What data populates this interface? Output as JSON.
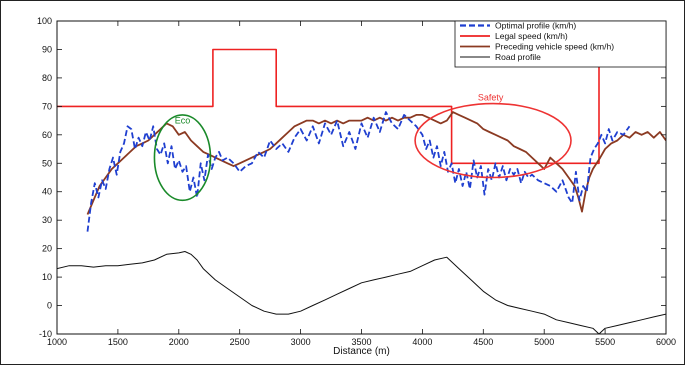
{
  "chart_data": {
    "type": "line",
    "xlabel": "Distance (m)",
    "ylabel": "",
    "title": "",
    "xlim": [
      1000,
      6000
    ],
    "ylim": [
      -10,
      100
    ],
    "xticks": [
      1000,
      1500,
      2000,
      2500,
      3000,
      3500,
      4000,
      4500,
      5000,
      5500,
      6000
    ],
    "yticks": [
      -10,
      0,
      10,
      20,
      30,
      40,
      50,
      60,
      70,
      80,
      90,
      100
    ],
    "grid": false,
    "legend_position": "top-right",
    "series": [
      {
        "name": "Optimal profile (km/h)",
        "color": "#1f3fd0",
        "style": "dashed",
        "x": [
          1250,
          1280,
          1310,
          1340,
          1370,
          1400,
          1430,
          1460,
          1490,
          1520,
          1550,
          1580,
          1610,
          1640,
          1670,
          1700,
          1730,
          1760,
          1790,
          1820,
          1850,
          1880,
          1910,
          1940,
          1970,
          2000,
          2030,
          2060,
          2090,
          2120,
          2150,
          2180,
          2210,
          2240,
          2270,
          2300,
          2330,
          2360,
          2400,
          2450,
          2500,
          2550,
          2600,
          2650,
          2700,
          2750,
          2800,
          2850,
          2900,
          2950,
          3000,
          3050,
          3100,
          3150,
          3200,
          3250,
          3300,
          3350,
          3400,
          3450,
          3500,
          3550,
          3600,
          3650,
          3700,
          3750,
          3800,
          3850,
          3900,
          3950,
          4000,
          4030,
          4060,
          4090,
          4120,
          4150,
          4180,
          4210,
          4240,
          4270,
          4300,
          4330,
          4360,
          4390,
          4420,
          4450,
          4480,
          4510,
          4540,
          4570,
          4600,
          4630,
          4660,
          4690,
          4720,
          4750,
          4780,
          4810,
          4840,
          4870,
          4900,
          4950,
          5000,
          5050,
          5100,
          5150,
          5200,
          5230,
          5260,
          5290,
          5320,
          5350,
          5380,
          5410,
          5440,
          5470,
          5500,
          5530,
          5560,
          5600,
          5650,
          5700
        ],
        "y": [
          26,
          36,
          43,
          38,
          44,
          41,
          48,
          52,
          46,
          54,
          57,
          63,
          62,
          55,
          59,
          56,
          61,
          58,
          63,
          55,
          53,
          57,
          50,
          56,
          48,
          51,
          47,
          49,
          40,
          45,
          38,
          50,
          44,
          53,
          48,
          52,
          54,
          51,
          52,
          50,
          47,
          49,
          50,
          54,
          52,
          58,
          55,
          57,
          54,
          59,
          62,
          58,
          63,
          57,
          64,
          60,
          65,
          56,
          61,
          55,
          64,
          59,
          66,
          61,
          68,
          64,
          62,
          67,
          65,
          63,
          60,
          55,
          58,
          52,
          56,
          49,
          54,
          47,
          50,
          43,
          48,
          42,
          47,
          41,
          51,
          45,
          49,
          39,
          48,
          44,
          50,
          45,
          49,
          44,
          48,
          46,
          48,
          43,
          47,
          45,
          46,
          44,
          43,
          42,
          40,
          44,
          38,
          36,
          47,
          37,
          42,
          40,
          52,
          55,
          57,
          60,
          57,
          62,
          58,
          61,
          60,
          63
        ]
      },
      {
        "name": "Legal speed (km/h)",
        "color": "#ee2222",
        "style": "solid",
        "x": [
          1000,
          2280,
          2280,
          2800,
          2800,
          4240,
          4240,
          5450,
          5450,
          5500,
          5500,
          6000
        ],
        "y": [
          70,
          70,
          90,
          90,
          70,
          70,
          50,
          50,
          90,
          90,
          90,
          90
        ]
      },
      {
        "name": "Preceding vehicle speed (km/h)",
        "color": "#8b3a22",
        "style": "solid",
        "x": [
          1250,
          1300,
          1350,
          1400,
          1450,
          1500,
          1550,
          1600,
          1650,
          1700,
          1750,
          1800,
          1850,
          1900,
          1950,
          2000,
          2050,
          2100,
          2150,
          2200,
          2250,
          2300,
          2350,
          2400,
          2450,
          2500,
          2550,
          2600,
          2650,
          2700,
          2750,
          2800,
          2850,
          2900,
          2950,
          3000,
          3050,
          3100,
          3150,
          3200,
          3250,
          3300,
          3350,
          3400,
          3450,
          3500,
          3550,
          3600,
          3650,
          3700,
          3750,
          3800,
          3850,
          3900,
          3950,
          4000,
          4050,
          4100,
          4150,
          4200,
          4250,
          4300,
          4350,
          4400,
          4450,
          4500,
          4550,
          4600,
          4650,
          4700,
          4750,
          4800,
          4850,
          4900,
          4950,
          5000,
          5050,
          5100,
          5150,
          5200,
          5250,
          5280,
          5310,
          5340,
          5370,
          5400,
          5430,
          5460,
          5500,
          5550,
          5600,
          5650,
          5700,
          5750,
          5800,
          5850,
          5900,
          5950,
          6000
        ],
        "y": [
          32,
          37,
          42,
          45,
          48,
          50,
          52,
          54,
          56,
          57,
          58,
          60,
          62,
          64,
          63,
          60,
          61,
          58,
          56,
          54,
          53,
          52,
          51,
          50,
          49,
          50,
          51,
          52,
          53,
          54,
          55,
          57,
          59,
          61,
          63,
          64,
          65,
          65,
          64,
          65,
          64,
          65,
          64,
          65,
          65,
          65,
          66,
          65,
          66,
          65,
          66,
          65,
          66,
          66,
          67,
          67,
          66,
          65,
          64,
          65,
          68,
          67,
          66,
          65,
          64,
          62,
          61,
          60,
          59,
          58,
          56,
          55,
          54,
          52,
          50,
          48,
          52,
          50,
          48,
          45,
          42,
          38,
          33,
          40,
          45,
          48,
          50,
          52,
          55,
          57,
          58,
          60,
          59,
          61,
          60,
          61,
          59,
          61,
          58
        ]
      },
      {
        "name": "Road profile",
        "color": "#111111",
        "style": "solid",
        "x": [
          1000,
          1100,
          1200,
          1300,
          1400,
          1500,
          1600,
          1700,
          1800,
          1900,
          2000,
          2050,
          2100,
          2150,
          2200,
          2300,
          2400,
          2500,
          2600,
          2700,
          2800,
          2900,
          3000,
          3100,
          3200,
          3300,
          3400,
          3500,
          3600,
          3700,
          3800,
          3900,
          4000,
          4100,
          4200,
          4300,
          4400,
          4500,
          4600,
          4700,
          4800,
          4900,
          5000,
          5100,
          5200,
          5300,
          5400,
          5450,
          5500,
          5600,
          5700,
          5800,
          5900,
          6000
        ],
        "y": [
          13,
          14,
          14,
          13.5,
          14,
          14,
          14.5,
          15,
          16,
          18,
          18.5,
          19,
          18,
          16,
          13,
          9,
          6,
          3,
          0,
          -2,
          -3,
          -3,
          -2,
          0,
          2,
          4,
          6,
          8,
          9,
          10,
          11,
          12,
          14,
          16,
          17,
          13,
          9,
          5,
          2,
          0,
          -1,
          -2,
          -3,
          -5,
          -6,
          -7,
          -8,
          -10,
          -8,
          -7,
          -6,
          -5,
          -4,
          -3
        ]
      }
    ],
    "annotations": [
      {
        "text": "Eco",
        "color": "#1a8a2a",
        "x": 2030,
        "y": 64
      },
      {
        "text": "Safety",
        "color": "#ee3333",
        "x": 4560,
        "y": 72
      }
    ],
    "ellipses": [
      {
        "color": "#1a8a2a",
        "cx": 2030,
        "cy": 52,
        "rx": 230,
        "ry": 15
      },
      {
        "color": "#ee3333",
        "cx": 4580,
        "cy": 58,
        "rx": 640,
        "ry": 13
      }
    ]
  }
}
